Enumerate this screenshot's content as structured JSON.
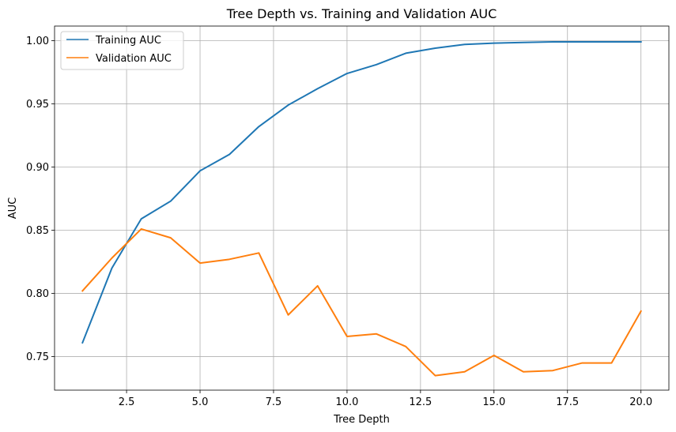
{
  "chart_data": {
    "type": "line",
    "title": "Tree Depth vs. Training and Validation AUC",
    "xlabel": "Tree Depth",
    "ylabel": "AUC",
    "x": [
      1,
      2,
      3,
      4,
      5,
      6,
      7,
      8,
      9,
      10,
      11,
      12,
      13,
      14,
      15,
      16,
      17,
      18,
      19,
      20
    ],
    "xlim": [
      0.05,
      20.95
    ],
    "ylim": [
      0.7235,
      1.0115
    ],
    "xticks": [
      2.5,
      5.0,
      7.5,
      10.0,
      12.5,
      15.0,
      17.5,
      20.0
    ],
    "xtick_labels": [
      "2.5",
      "5.0",
      "7.5",
      "10.0",
      "12.5",
      "15.0",
      "17.5",
      "20.0"
    ],
    "yticks": [
      0.75,
      0.8,
      0.85,
      0.9,
      0.95,
      1.0
    ],
    "ytick_labels": [
      "0.75",
      "0.80",
      "0.85",
      "0.90",
      "0.95",
      "1.00"
    ],
    "grid": true,
    "legend_position": "upper-left",
    "series": [
      {
        "name": "Training AUC",
        "color": "#1f77b4",
        "values": [
          0.761,
          0.82,
          0.859,
          0.873,
          0.897,
          0.91,
          0.932,
          0.949,
          0.962,
          0.974,
          0.981,
          0.99,
          0.994,
          0.997,
          0.998,
          0.9985,
          0.999,
          0.999,
          0.999,
          0.999
        ]
      },
      {
        "name": "Validation AUC",
        "color": "#ff7f0e",
        "values": [
          0.802,
          0.828,
          0.851,
          0.844,
          0.824,
          0.827,
          0.832,
          0.783,
          0.806,
          0.766,
          0.768,
          0.758,
          0.735,
          0.738,
          0.751,
          0.738,
          0.739,
          0.745,
          0.745,
          0.786
        ]
      }
    ]
  }
}
